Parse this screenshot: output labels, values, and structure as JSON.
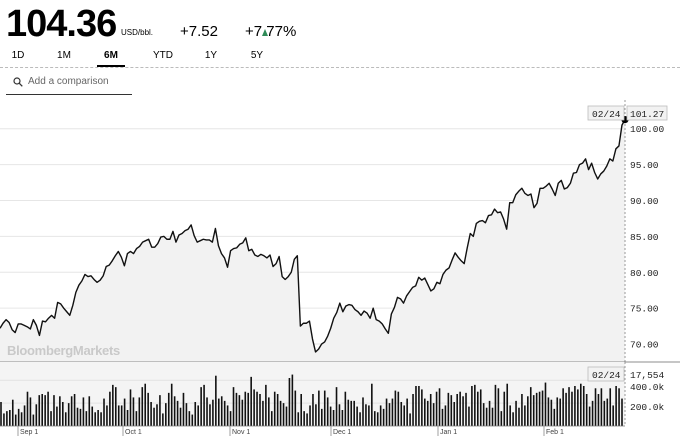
{
  "quote": {
    "price": "104.36",
    "unit": "USD/bbl.",
    "change": "+7.52",
    "change_pct": "+7.77%",
    "up_color": "#2e8b57"
  },
  "tabs": [
    {
      "label": "1D",
      "active": false
    },
    {
      "label": "1M",
      "active": false
    },
    {
      "label": "6M",
      "active": true
    },
    {
      "label": "YTD",
      "active": false
    },
    {
      "label": "1Y",
      "active": false
    },
    {
      "label": "5Y",
      "active": false
    }
  ],
  "comparison": {
    "placeholder": "Add a comparison",
    "icon": "search-icon"
  },
  "watermark": "BloombergMarkets",
  "chart_data": {
    "type": "line",
    "title": "",
    "ylabel": "",
    "ylim": [
      67.5,
      104
    ],
    "yticks": [
      "70.00",
      "75.00",
      "80.00",
      "85.00",
      "90.00",
      "95.00",
      "100.00"
    ],
    "y_axis_side": "right",
    "grid": true,
    "hover": {
      "date_label": "02/24",
      "value_label": "101.27"
    },
    "x_tick_labels": [
      "Sep 1",
      "Oct 1",
      "Nov 1",
      "Dec 1",
      "Jan 1",
      "Feb 1"
    ],
    "series": [
      {
        "values": [
          72.2,
          72.9,
          73.4,
          73.0,
          72.0,
          71.6,
          72.8,
          72.8,
          72.6,
          72.4,
          72.1,
          73.4,
          72.6,
          71.2,
          73.2,
          73.1,
          73.6,
          74.0,
          73.6,
          75.8,
          75.6,
          75.0,
          74.5,
          74.0,
          75.4,
          77.2,
          78.2,
          78.8,
          79.7,
          79.4,
          79.5,
          79.0,
          78.6,
          78.9,
          79.5,
          80.8,
          81.0,
          81.6,
          82.3,
          82.9,
          82.1,
          80.9,
          82.6,
          82.9,
          82.6,
          83.3,
          83.6,
          84.2,
          84.4,
          84.6,
          83.5,
          83.5,
          84.0,
          84.9,
          85.0,
          84.6,
          84.6,
          85.7,
          84.2,
          85.2,
          85.4,
          85.8,
          86.0,
          86.6,
          85.1,
          84.2,
          84.4,
          84.6,
          84.5,
          84.5,
          84.2,
          86.1,
          83.7,
          82.6,
          82.0,
          80.7,
          83.0,
          83.3,
          83.4,
          83.9,
          84.1,
          84.8,
          83.0,
          83.2,
          82.4,
          82.2,
          82.5,
          82.3,
          82.0,
          82.4,
          80.8,
          81.2,
          82.2,
          79.4,
          79.0,
          79.4,
          80.0,
          81.8,
          82.3,
          72.5,
          72.9,
          72.9,
          73.2,
          70.7,
          68.9,
          69.3,
          70.0,
          70.3,
          71.1,
          72.2,
          73.6,
          74.4,
          75.7,
          74.5,
          75.3,
          75.5,
          75.4,
          74.8,
          74.5,
          74.0,
          74.6,
          74.3,
          73.6,
          75.0,
          73.4,
          73.2,
          72.8,
          72.1,
          71.5,
          74.2,
          75.1,
          76.5,
          76.3,
          75.7,
          76.7,
          77.3,
          77.9,
          78.1,
          79.3,
          78.9,
          79.2,
          78.3,
          77.4,
          77.7,
          78.6,
          78.4,
          79.7,
          80.3,
          80.6,
          81.7,
          82.7,
          82.1,
          81.6,
          81.2,
          83.4,
          85.4,
          85.0,
          86.8,
          87.1,
          87.2,
          86.9,
          87.9,
          88.0,
          88.8,
          88.3,
          88.4,
          87.4,
          86.0,
          89.7,
          89.7,
          90.8,
          91.3,
          91.7,
          91.0,
          90.7,
          90.9,
          89.0,
          89.6,
          91.7,
          91.7,
          92.0,
          92.4,
          91.6,
          90.7,
          92.4,
          92.8,
          91.6,
          91.8,
          92.4,
          93.8,
          93.9,
          95.0,
          95.2,
          95.8,
          94.3,
          95.2,
          93.9,
          93.0,
          93.7,
          94.1,
          94.8,
          95.8,
          95.5,
          97.2,
          97.6,
          100.5,
          101.27
        ]
      }
    ],
    "volume": {
      "hover_label": "02/24",
      "value_label": "17,554",
      "ticks": [
        "400.0k",
        "200.0k"
      ],
      "ylim": [
        0,
        560
      ],
      "values": [
        210,
        110,
        130,
        140,
        230,
        100,
        150,
        120,
        180,
        300,
        250,
        100,
        190,
        270,
        280,
        270,
        300,
        130,
        270,
        170,
        260,
        210,
        120,
        200,
        260,
        280,
        160,
        150,
        250,
        130,
        260,
        170,
        120,
        140,
        120,
        240,
        180,
        300,
        360,
        340,
        180,
        180,
        240,
        140,
        320,
        250,
        130,
        250,
        340,
        370,
        290,
        210,
        160,
        190,
        270,
        110,
        200,
        290,
        370,
        260,
        220,
        160,
        290,
        200,
        130,
        100,
        210,
        180,
        340,
        360,
        250,
        190,
        230,
        440,
        240,
        260,
        220,
        180,
        130,
        340,
        290,
        270,
        230,
        300,
        290,
        430,
        320,
        300,
        280,
        220,
        360,
        250,
        130,
        300,
        280,
        220,
        200,
        170,
        420,
        450,
        310,
        120,
        280,
        130,
        110,
        180,
        280,
        190,
        310,
        150,
        310,
        250,
        170,
        140,
        340,
        190,
        140,
        300,
        230,
        220,
        220,
        170,
        120,
        250,
        190,
        180,
        370,
        130,
        120,
        180,
        150,
        240,
        200,
        240,
        310,
        300,
        210,
        180,
        240,
        110,
        280,
        350,
        350,
        320,
        240,
        220,
        280,
        200,
        300,
        330,
        150,
        180,
        290,
        270,
        210,
        280,
        300,
        260,
        290,
        170,
        350,
        360,
        300,
        320,
        200,
        160,
        220,
        160,
        360,
        330,
        130,
        300,
        370,
        180,
        120,
        220,
        160,
        280,
        180,
        260,
        340,
        270,
        290,
        300,
        310,
        380,
        250,
        230,
        150,
        250,
        240,
        330,
        290,
        340,
        300,
        350,
        320,
        370,
        350,
        280,
        170,
        220,
        330,
        280,
        330,
        220,
        240,
        330,
        180,
        350,
        330,
        240
      ]
    }
  }
}
